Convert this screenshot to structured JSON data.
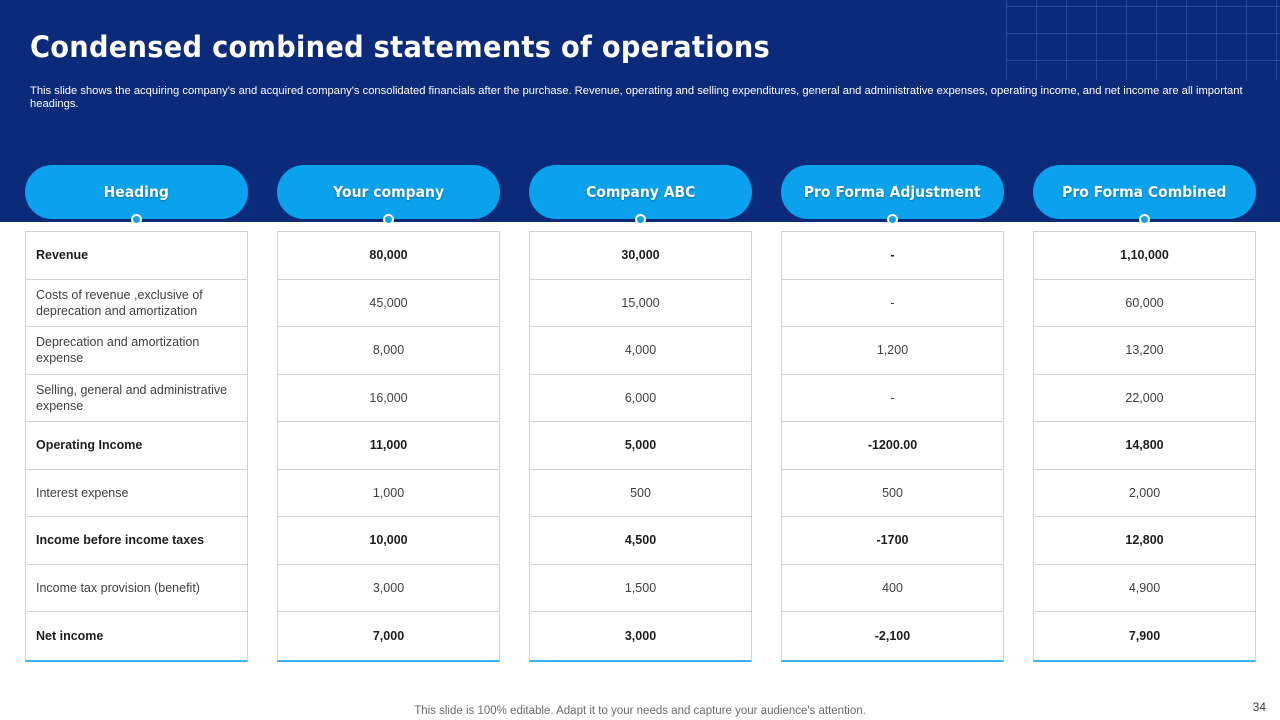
{
  "slide": {
    "title": "Condensed combined statements of operations",
    "subtitle": "This slide shows the acquiring company's and acquired company's consolidated financials after the purchase. Revenue, operating and selling expenditures, general and administrative expenses, operating income, and net income are all important headings.",
    "footer": "This slide is 100% editable. Adapt it to your needs and capture your audience's attention.",
    "page_number": "34"
  },
  "colors": {
    "banner": "#0b2a7a",
    "pill": "#0aa2ec",
    "table_accent": "#39b2ef"
  },
  "table": {
    "columns": [
      "Heading",
      "Your company",
      "Company ABC",
      "Pro Forma Adjustment",
      "Pro Forma Combined"
    ],
    "rows": [
      {
        "heading": "Revenue",
        "bold": true,
        "values": [
          "80,000",
          "30,000",
          "-",
          "1,10,000"
        ]
      },
      {
        "heading": "Costs of revenue  ,exclusive of deprecation and amortization",
        "bold": false,
        "values": [
          "45,000",
          "15,000",
          "-",
          "60,000"
        ]
      },
      {
        "heading": "Deprecation and amortization expense",
        "bold": false,
        "values": [
          "8,000",
          "4,000",
          "1,200",
          "13,200"
        ]
      },
      {
        "heading": "Selling, general and administrative expense",
        "bold": false,
        "values": [
          "16,000",
          "6,000",
          "-",
          "22,000"
        ]
      },
      {
        "heading": "Operating Income",
        "bold": true,
        "values": [
          "11,000",
          "5,000",
          "-1200.00",
          "14,800"
        ]
      },
      {
        "heading": "Interest expense",
        "bold": false,
        "values": [
          "1,000",
          "500",
          "500",
          "2,000"
        ]
      },
      {
        "heading": "Income before income taxes",
        "bold": true,
        "values": [
          "10,000",
          "4,500",
          "-1700",
          "12,800"
        ]
      },
      {
        "heading": "Income tax provision  (benefit)",
        "bold": false,
        "values": [
          "3,000",
          "1,500",
          "400",
          "4,900"
        ]
      },
      {
        "heading": "Net income",
        "bold": true,
        "values": [
          "7,000",
          "3,000",
          "-2,100",
          "7,900"
        ]
      }
    ]
  }
}
